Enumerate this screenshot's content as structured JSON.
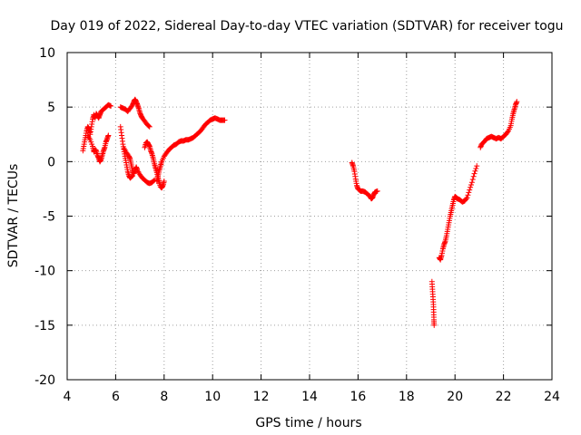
{
  "chart_data": {
    "type": "scatter",
    "title": "Day 019 of 2022, Sidereal Day-to-day VTEC variation (SDTVAR) for receiver togu",
    "xlabel": "GPS time / hours",
    "ylabel": "SDTVAR / TECUs",
    "xlim": [
      4,
      24
    ],
    "ylim": [
      -20,
      10
    ],
    "xticks": [
      "4",
      "6",
      "8",
      "10",
      "12",
      "14",
      "16",
      "18",
      "20",
      "22",
      "24"
    ],
    "yticks": [
      "-20",
      "-15",
      "-10",
      "-5",
      "0",
      "5",
      "10"
    ],
    "grid": true,
    "marker": "plus",
    "color": "#ff0000",
    "series": [
      {
        "name": "SDTVAR",
        "segments": [
          [
            [
              4.65,
              1.0
            ],
            [
              4.7,
              1.6
            ],
            [
              4.75,
              2.2
            ],
            [
              4.8,
              2.8
            ],
            [
              4.85,
              3.2
            ],
            [
              4.9,
              3.0
            ],
            [
              4.95,
              2.5
            ],
            [
              5.0,
              3.2
            ],
            [
              5.05,
              3.9
            ],
            [
              5.1,
              4.3
            ],
            [
              5.15,
              4.0
            ],
            [
              5.2,
              4.4
            ],
            [
              5.25,
              4.2
            ],
            [
              5.3,
              4.0
            ],
            [
              5.35,
              4.3
            ],
            [
              5.4,
              4.6
            ],
            [
              5.5,
              4.8
            ],
            [
              5.6,
              5.0
            ],
            [
              5.7,
              5.2
            ],
            [
              5.8,
              5.1
            ]
          ],
          [
            [
              4.85,
              2.4
            ],
            [
              4.95,
              2.0
            ],
            [
              5.05,
              1.4
            ],
            [
              5.1,
              0.9
            ],
            [
              5.15,
              1.1
            ],
            [
              5.2,
              1.0
            ],
            [
              5.25,
              0.6
            ],
            [
              5.3,
              0.3
            ],
            [
              5.35,
              0.0
            ],
            [
              5.4,
              0.2
            ],
            [
              5.45,
              0.6
            ],
            [
              5.5,
              1.0
            ],
            [
              5.55,
              1.3
            ],
            [
              5.6,
              1.8
            ],
            [
              5.65,
              2.1
            ],
            [
              5.7,
              2.4
            ]
          ],
          [
            [
              6.2,
              5.0
            ],
            [
              6.3,
              4.9
            ],
            [
              6.4,
              4.8
            ],
            [
              6.5,
              4.6
            ],
            [
              6.6,
              4.9
            ],
            [
              6.7,
              5.2
            ],
            [
              6.75,
              5.5
            ],
            [
              6.8,
              5.7
            ],
            [
              6.85,
              5.5
            ],
            [
              6.9,
              5.2
            ],
            [
              6.95,
              4.9
            ],
            [
              7.0,
              4.5
            ],
            [
              7.05,
              4.2
            ],
            [
              7.1,
              4.0
            ],
            [
              7.2,
              3.7
            ],
            [
              7.3,
              3.4
            ],
            [
              7.4,
              3.2
            ]
          ],
          [
            [
              6.2,
              3.2
            ],
            [
              6.25,
              2.4
            ],
            [
              6.3,
              1.6
            ],
            [
              6.35,
              0.9
            ],
            [
              6.4,
              0.3
            ],
            [
              6.45,
              -0.3
            ],
            [
              6.5,
              -0.9
            ],
            [
              6.55,
              -1.3
            ],
            [
              6.6,
              -1.5
            ],
            [
              6.7,
              -1.3
            ]
          ],
          [
            [
              6.35,
              1.2
            ],
            [
              6.45,
              0.8
            ],
            [
              6.55,
              0.5
            ],
            [
              6.6,
              0.2
            ],
            [
              6.65,
              -0.3
            ],
            [
              6.7,
              -0.8
            ],
            [
              6.75,
              -1.1
            ],
            [
              6.8,
              -0.8
            ],
            [
              6.85,
              -0.5
            ],
            [
              6.9,
              -0.8
            ],
            [
              7.0,
              -1.2
            ],
            [
              7.1,
              -1.5
            ],
            [
              7.2,
              -1.7
            ],
            [
              7.3,
              -1.9
            ],
            [
              7.4,
              -2.0
            ],
            [
              7.5,
              -1.9
            ],
            [
              7.6,
              -1.7
            ]
          ],
          [
            [
              7.2,
              1.3
            ],
            [
              7.25,
              1.7
            ],
            [
              7.3,
              1.8
            ],
            [
              7.35,
              1.6
            ],
            [
              7.4,
              1.4
            ],
            [
              7.45,
              1.0
            ],
            [
              7.5,
              0.7
            ],
            [
              7.55,
              0.3
            ],
            [
              7.6,
              -0.2
            ],
            [
              7.65,
              -0.6
            ],
            [
              7.7,
              -1.0
            ],
            [
              7.75,
              -1.5
            ],
            [
              7.8,
              -1.9
            ],
            [
              7.85,
              -2.3
            ],
            [
              7.9,
              -2.4
            ],
            [
              7.95,
              -2.2
            ],
            [
              8.0,
              -1.8
            ]
          ],
          [
            [
              7.7,
              -1.8
            ],
            [
              7.75,
              -1.3
            ],
            [
              7.8,
              -0.8
            ],
            [
              7.85,
              -0.4
            ],
            [
              7.9,
              0.0
            ],
            [
              8.0,
              0.5
            ],
            [
              8.1,
              0.8
            ],
            [
              8.2,
              1.1
            ],
            [
              8.3,
              1.3
            ],
            [
              8.4,
              1.5
            ],
            [
              8.5,
              1.6
            ],
            [
              8.6,
              1.8
            ],
            [
              8.7,
              1.9
            ],
            [
              8.8,
              1.9
            ],
            [
              8.9,
              2.0
            ],
            [
              9.0,
              2.0
            ],
            [
              9.1,
              2.1
            ],
            [
              9.2,
              2.2
            ],
            [
              9.3,
              2.4
            ],
            [
              9.4,
              2.6
            ],
            [
              9.5,
              2.8
            ],
            [
              9.6,
              3.1
            ],
            [
              9.7,
              3.4
            ],
            [
              9.8,
              3.6
            ],
            [
              9.9,
              3.8
            ],
            [
              10.0,
              3.9
            ],
            [
              10.1,
              4.0
            ],
            [
              10.2,
              3.9
            ],
            [
              10.3,
              3.8
            ],
            [
              10.4,
              3.8
            ],
            [
              10.5,
              3.8
            ]
          ],
          [
            [
              15.75,
              -0.1
            ],
            [
              15.8,
              -0.4
            ],
            [
              15.85,
              -0.9
            ],
            [
              15.9,
              -1.6
            ],
            [
              15.95,
              -2.2
            ],
            [
              16.0,
              -2.5
            ],
            [
              16.1,
              -2.7
            ],
            [
              16.2,
              -2.7
            ],
            [
              16.3,
              -2.8
            ],
            [
              16.4,
              -3.0
            ],
            [
              16.5,
              -3.2
            ],
            [
              16.55,
              -3.4
            ],
            [
              16.6,
              -3.3
            ],
            [
              16.65,
              -3.0
            ],
            [
              16.7,
              -2.8
            ],
            [
              16.8,
              -2.7
            ]
          ],
          [
            [
              19.05,
              -11.0
            ],
            [
              19.07,
              -11.7
            ],
            [
              19.09,
              -12.4
            ],
            [
              19.11,
              -13.1
            ],
            [
              19.12,
              -13.8
            ],
            [
              19.13,
              -14.5
            ],
            [
              19.14,
              -15.0
            ]
          ],
          [
            [
              19.35,
              -8.8
            ],
            [
              19.4,
              -9.0
            ],
            [
              19.45,
              -8.6
            ],
            [
              19.5,
              -8.0
            ],
            [
              19.55,
              -7.6
            ],
            [
              19.6,
              -7.3
            ],
            [
              19.65,
              -6.8
            ],
            [
              19.7,
              -6.2
            ],
            [
              19.75,
              -5.6
            ],
            [
              19.8,
              -5.0
            ],
            [
              19.85,
              -4.5
            ],
            [
              19.9,
              -4.0
            ],
            [
              19.95,
              -3.5
            ],
            [
              20.0,
              -3.2
            ],
            [
              20.05,
              -3.3
            ],
            [
              20.1,
              -3.4
            ],
            [
              20.2,
              -3.5
            ],
            [
              20.3,
              -3.7
            ],
            [
              20.4,
              -3.6
            ],
            [
              20.5,
              -3.3
            ],
            [
              20.6,
              -2.6
            ],
            [
              20.7,
              -1.9
            ],
            [
              20.8,
              -1.1
            ],
            [
              20.9,
              -0.4
            ]
          ],
          [
            [
              21.05,
              1.3
            ],
            [
              21.1,
              1.6
            ],
            [
              21.2,
              1.8
            ],
            [
              21.3,
              2.1
            ],
            [
              21.4,
              2.2
            ],
            [
              21.5,
              2.3
            ],
            [
              21.6,
              2.2
            ],
            [
              21.7,
              2.1
            ],
            [
              21.8,
              2.2
            ],
            [
              21.9,
              2.1
            ],
            [
              22.0,
              2.3
            ],
            [
              22.1,
              2.5
            ],
            [
              22.2,
              2.8
            ],
            [
              22.3,
              3.3
            ],
            [
              22.35,
              3.9
            ],
            [
              22.4,
              4.4
            ],
            [
              22.45,
              4.8
            ],
            [
              22.5,
              5.2
            ],
            [
              22.55,
              5.5
            ]
          ]
        ]
      }
    ]
  }
}
